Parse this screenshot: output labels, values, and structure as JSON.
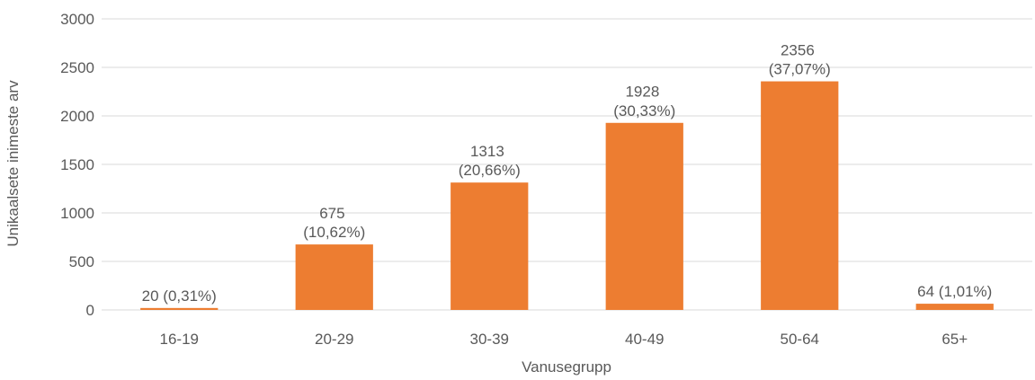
{
  "chart_data": {
    "type": "bar",
    "categories": [
      "16-19",
      "20-29",
      "30-39",
      "40-49",
      "50-64",
      "65+"
    ],
    "values": [
      20,
      675,
      1313,
      1928,
      2356,
      64
    ],
    "value_labels": [
      "20 (0,31%)",
      "675 (10,62%)",
      "1313 (20,66%)",
      "1928 (30,33%)",
      "2356 (37,07%)",
      "64 (1,01%)"
    ],
    "color": "#ed7d31",
    "ylim": [
      0,
      3000
    ],
    "yticks": [
      0,
      500,
      1000,
      1500,
      2000,
      2500,
      3000
    ],
    "grid": true,
    "x_label": "Vanusegrupp",
    "y_label": "Unikaalsete inimeste arv"
  }
}
